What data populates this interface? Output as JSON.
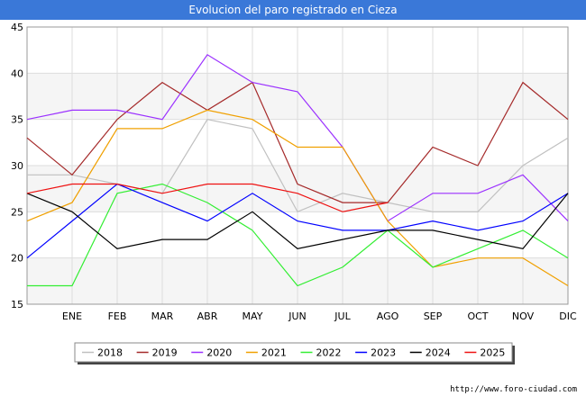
{
  "title": "Evolucion del paro registrado en Cieza",
  "source": "http://www.foro-ciudad.com",
  "chart_data": {
    "type": "line",
    "title": "Evolucion del paro registrado en Cieza",
    "categories": [
      "",
      "ENE",
      "FEB",
      "MAR",
      "ABR",
      "MAY",
      "JUN",
      "JUL",
      "AGO",
      "SEP",
      "OCT",
      "NOV",
      "DIC"
    ],
    "ylim": [
      15,
      45
    ],
    "yticks": [
      15,
      20,
      25,
      30,
      35,
      40,
      45
    ],
    "grid": true,
    "legend_position": "bottom",
    "series": [
      {
        "name": "2018",
        "color": "#c0c0c0",
        "values": [
          29,
          29,
          28,
          27,
          35,
          34,
          25,
          27,
          26,
          25,
          25,
          30,
          33
        ]
      },
      {
        "name": "2019",
        "color": "#a52a2a",
        "values": [
          33,
          29,
          35,
          39,
          36,
          39,
          28,
          26,
          26,
          32,
          30,
          39,
          35
        ]
      },
      {
        "name": "2020",
        "color": "#9b30ff",
        "values": [
          35,
          36,
          36,
          35,
          42,
          39,
          38,
          32,
          24,
          27,
          27,
          29,
          24
        ]
      },
      {
        "name": "2021",
        "color": "#f0a000",
        "values": [
          24,
          26,
          34,
          34,
          36,
          35,
          32,
          32,
          24,
          19,
          20,
          20,
          17
        ]
      },
      {
        "name": "2022",
        "color": "#33ee33",
        "values": [
          17,
          17,
          27,
          28,
          26,
          23,
          17,
          19,
          23,
          19,
          21,
          23,
          20
        ]
      },
      {
        "name": "2023",
        "color": "#0000ff",
        "values": [
          20,
          24,
          28,
          26,
          24,
          27,
          24,
          23,
          23,
          24,
          23,
          24,
          27
        ]
      },
      {
        "name": "2024",
        "color": "#000000",
        "values": [
          27,
          25,
          21,
          22,
          22,
          25,
          21,
          22,
          23,
          23,
          22,
          21,
          27
        ]
      },
      {
        "name": "2025",
        "color": "#ee1111",
        "values": [
          27,
          28,
          28,
          27,
          28,
          28,
          27,
          25,
          26,
          null,
          null,
          null,
          null
        ]
      }
    ]
  }
}
